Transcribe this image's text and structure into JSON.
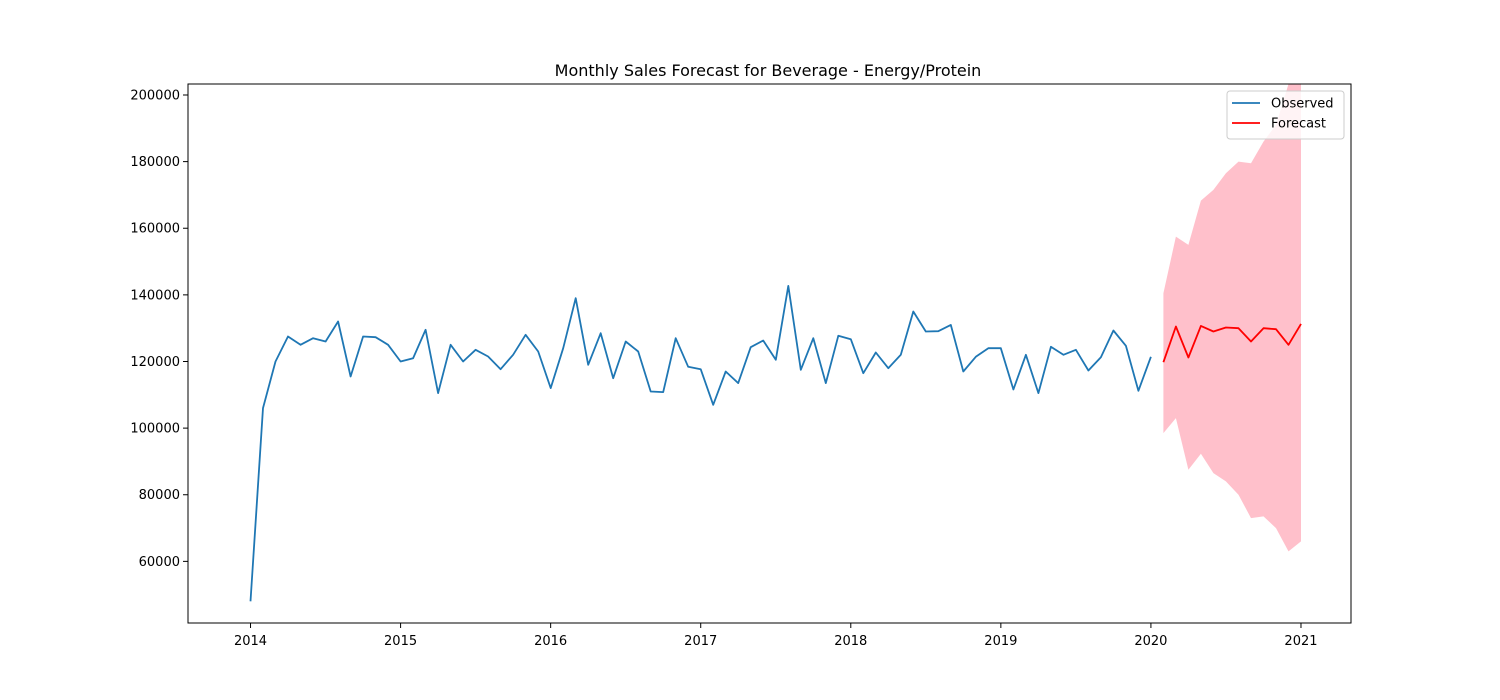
{
  "chart_data": {
    "type": "line",
    "title": "Monthly Sales Forecast for Beverage - Energy/Protein",
    "xlabel": "",
    "ylabel": "",
    "x_ticks": [
      "2014",
      "2015",
      "2016",
      "2017",
      "2018",
      "2019",
      "2020",
      "2021"
    ],
    "y_ticks": [
      "60000",
      "80000",
      "100000",
      "120000",
      "140000",
      "160000",
      "180000",
      "200000"
    ],
    "ylim": [
      41500,
      203300
    ],
    "xlim": [
      "2013-08",
      "2021-05"
    ],
    "grid": false,
    "legend_position": "top-right",
    "series": [
      {
        "name": "Observed",
        "color": "#1f77b4",
        "x": [
          "2014-01",
          "2014-02",
          "2014-03",
          "2014-04",
          "2014-05",
          "2014-06",
          "2014-07",
          "2014-08",
          "2014-09",
          "2014-10",
          "2014-11",
          "2014-12",
          "2015-01",
          "2015-02",
          "2015-03",
          "2015-04",
          "2015-05",
          "2015-06",
          "2015-07",
          "2015-08",
          "2015-09",
          "2015-10",
          "2015-11",
          "2015-12",
          "2016-01",
          "2016-02",
          "2016-03",
          "2016-04",
          "2016-05",
          "2016-06",
          "2016-07",
          "2016-08",
          "2016-09",
          "2016-10",
          "2016-11",
          "2016-12",
          "2017-01",
          "2017-02",
          "2017-03",
          "2017-04",
          "2017-05",
          "2017-06",
          "2017-07",
          "2017-08",
          "2017-09",
          "2017-10",
          "2017-11",
          "2017-12",
          "2018-01",
          "2018-02",
          "2018-03",
          "2018-04",
          "2018-05",
          "2018-06",
          "2018-07",
          "2018-08",
          "2018-09",
          "2018-10",
          "2018-11",
          "2018-12",
          "2019-01",
          "2019-02",
          "2019-03",
          "2019-04",
          "2019-05",
          "2019-06",
          "2019-07",
          "2019-08",
          "2019-09",
          "2019-10",
          "2019-11",
          "2019-12",
          "2020-01"
        ],
        "values": [
          48000,
          106000,
          120000,
          127500,
          125000,
          127000,
          126000,
          132000,
          115500,
          127500,
          127300,
          125000,
          120000,
          121000,
          129500,
          110500,
          125000,
          120000,
          123500,
          121500,
          117700,
          122000,
          128000,
          123000,
          112000,
          124000,
          139000,
          119000,
          128500,
          115000,
          126000,
          123000,
          111000,
          110800,
          127000,
          118400,
          117700,
          107000,
          117000,
          113500,
          124300,
          126300,
          120500,
          142700,
          117500,
          127000,
          113500,
          127700,
          126700,
          116500,
          122700,
          118000,
          122000,
          135000,
          129000,
          129100,
          131000,
          117000,
          121400,
          124000,
          124000,
          111600,
          122000,
          110500,
          124400,
          122000,
          123500,
          117300,
          121300,
          129300,
          124700,
          111200,
          121400
        ]
      },
      {
        "name": "Forecast",
        "color": "#ff0000",
        "x": [
          "2020-02",
          "2020-03",
          "2020-04",
          "2020-05",
          "2020-06",
          "2020-07",
          "2020-08",
          "2020-09",
          "2020-10",
          "2020-11",
          "2020-12",
          "2021-01"
        ],
        "values": [
          119800,
          130500,
          121200,
          130700,
          129000,
          130200,
          130000,
          126000,
          130000,
          129700,
          125000,
          131300
        ],
        "lower": [
          98500,
          103000,
          87500,
          92300,
          86500,
          84000,
          80000,
          73000,
          73500,
          70000,
          63000,
          66000
        ],
        "upper": [
          140500,
          157500,
          155000,
          168300,
          171500,
          176500,
          180000,
          179500,
          186000,
          191000,
          203300,
          203300
        ],
        "band_color": "#ffc0cb"
      }
    ]
  }
}
